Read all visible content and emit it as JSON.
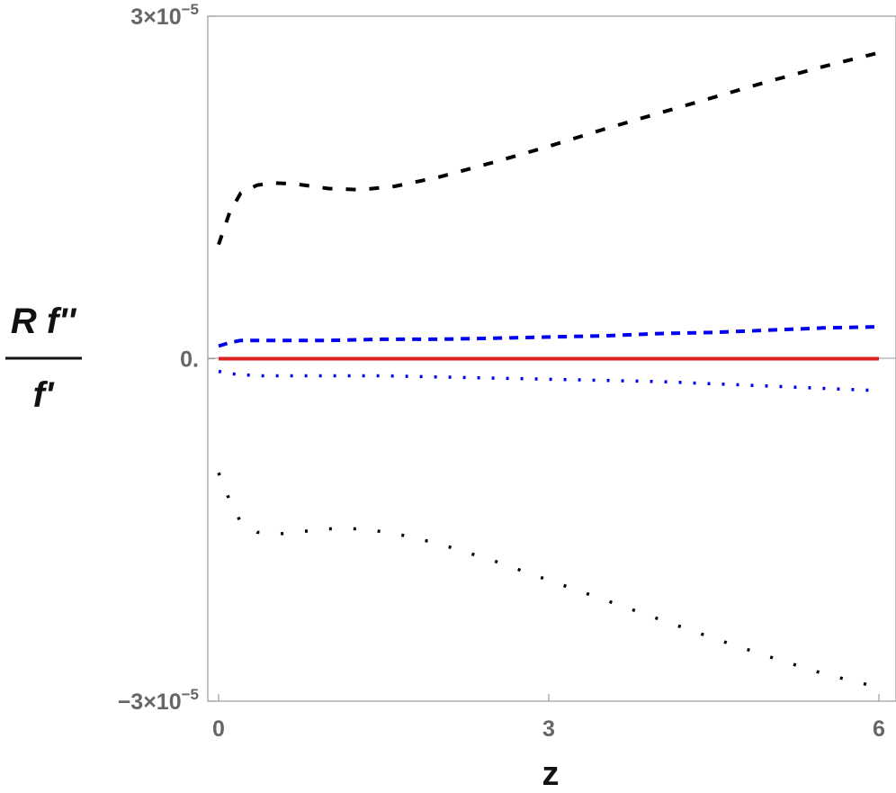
{
  "chart_data": {
    "type": "line",
    "xlabel": "z",
    "ylabel": {
      "numerator": "R f''",
      "denominator": "f'"
    },
    "xlim": [
      0,
      6
    ],
    "ylim": [
      -3e-05,
      3e-05
    ],
    "xticks": [
      0,
      3,
      6
    ],
    "xtick_labels": [
      "0",
      "3",
      "6"
    ],
    "yticks": [
      -3e-05,
      0,
      3e-05
    ],
    "ytick_labels": [
      {
        "mantissa": "−3×10",
        "exp": "−5"
      },
      {
        "mantissa": "0.",
        "exp": ""
      },
      {
        "mantissa": "3×10",
        "exp": "−5"
      }
    ],
    "grid": false,
    "legend": "none",
    "series": [
      {
        "style": "dashed",
        "color": "#000000",
        "x": [
          0,
          0.1,
          0.2,
          0.35,
          0.5,
          0.7,
          1.0,
          1.3,
          1.6,
          2.0,
          2.5,
          3.0,
          3.5,
          4.0,
          4.5,
          5.0,
          5.5,
          6.0
        ],
        "y": [
          1e-05,
          1.28e-05,
          1.45e-05,
          1.52e-05,
          1.54e-05,
          1.53e-05,
          1.49e-05,
          1.48e-05,
          1.51e-05,
          1.59e-05,
          1.72e-05,
          1.86e-05,
          2.01e-05,
          2.15e-05,
          2.29e-05,
          2.43e-05,
          2.56e-05,
          2.68e-05
        ]
      },
      {
        "style": "dotted",
        "color": "#000000",
        "x": [
          0,
          0.1,
          0.2,
          0.35,
          0.5,
          0.7,
          1.0,
          1.3,
          1.6,
          2.0,
          2.5,
          3.0,
          3.5,
          4.0,
          4.5,
          5.0,
          5.5,
          6.0
        ],
        "y": [
          -1e-05,
          -1.24e-05,
          -1.43e-05,
          -1.52e-05,
          -1.54e-05,
          -1.52e-05,
          -1.49e-05,
          -1.49e-05,
          -1.53e-05,
          -1.62e-05,
          -1.77e-05,
          -1.94e-05,
          -2.11e-05,
          -2.28e-05,
          -2.45e-05,
          -2.61e-05,
          -2.76e-05,
          -2.88e-05
        ]
      },
      {
        "style": "dashed",
        "color": "#0000ee",
        "x": [
          0,
          0.1,
          0.2,
          0.4,
          0.7,
          1.0,
          1.5,
          2.0,
          2.5,
          3.0,
          3.5,
          4.0,
          4.5,
          5.0,
          5.5,
          6.0
        ],
        "y": [
          1.1e-06,
          1.4e-06,
          1.6e-06,
          1.6e-06,
          1.6e-06,
          1.6e-06,
          1.7e-06,
          1.7e-06,
          1.8e-06,
          1.9e-06,
          2e-06,
          2.2e-06,
          2.3e-06,
          2.5e-06,
          2.7e-06,
          2.8e-06
        ]
      },
      {
        "style": "dotted",
        "color": "#0000ee",
        "x": [
          0,
          0.1,
          0.2,
          0.4,
          0.7,
          1.0,
          1.5,
          2.0,
          2.5,
          3.0,
          3.5,
          4.0,
          4.5,
          5.0,
          5.5,
          6.0
        ],
        "y": [
          -1.1e-06,
          -1.3e-06,
          -1.4e-06,
          -1.5e-06,
          -1.5e-06,
          -1.5e-06,
          -1.5e-06,
          -1.6e-06,
          -1.7e-06,
          -1.8e-06,
          -1.9e-06,
          -2e-06,
          -2.2e-06,
          -2.4e-06,
          -2.6e-06,
          -2.8e-06
        ]
      },
      {
        "style": "solid",
        "color": "#dd2222",
        "x": [
          0,
          6
        ],
        "y": [
          0,
          0
        ]
      }
    ]
  }
}
